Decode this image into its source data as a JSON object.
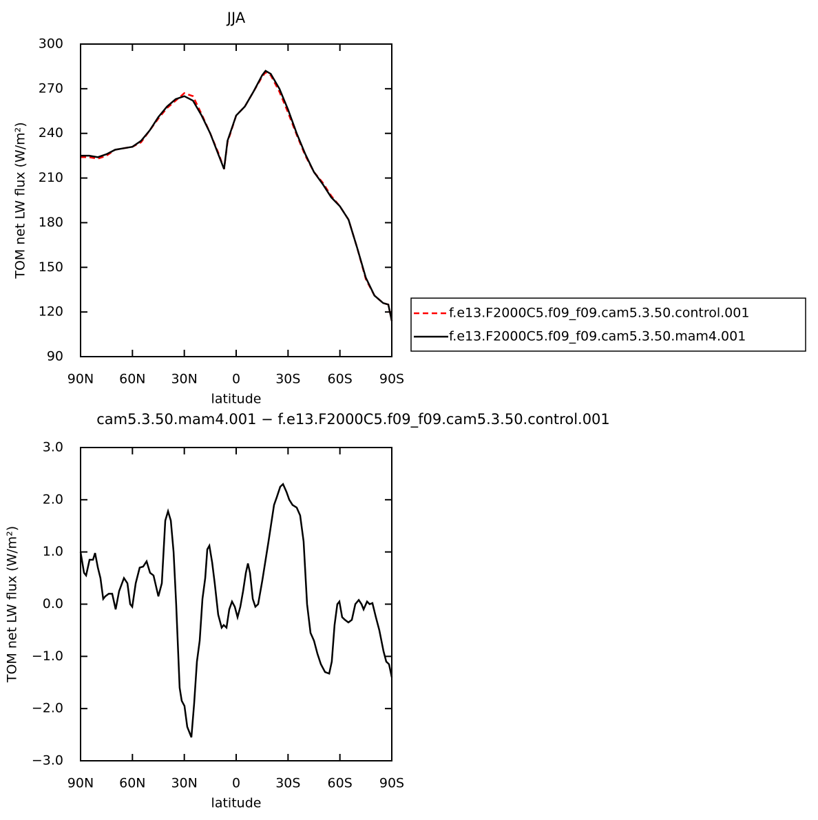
{
  "chart_data": [
    {
      "type": "line",
      "title": "JJA",
      "xlabel": "latitude",
      "ylabel": "TOM net LW flux (W/m²)",
      "x": [
        90,
        85,
        80,
        75,
        70,
        65,
        60,
        55,
        50,
        45,
        40,
        35,
        30,
        25,
        20,
        15,
        10,
        7,
        5,
        0,
        -5,
        -10,
        -15,
        -17,
        -20,
        -25,
        -30,
        -35,
        -40,
        -45,
        -50,
        -55,
        -60,
        -65,
        -70,
        -75,
        -80,
        -85,
        -88,
        -90
      ],
      "series": [
        {
          "name": "f.e13.F2000C5.f09_f09.cam5.3.50.control.001",
          "color": "#ff0000",
          "linestyle": "dashed",
          "values": [
            224,
            224,
            223,
            225,
            229,
            230,
            231,
            234,
            242,
            250,
            257,
            262,
            267,
            265,
            253,
            240,
            226,
            216,
            234,
            252,
            258,
            268,
            278,
            281,
            279,
            268,
            254,
            239,
            225,
            214,
            207,
            198,
            191,
            182,
            163,
            142,
            131,
            126,
            125,
            114
          ]
        },
        {
          "name": "f.e13.F2000C5.f09_f09.cam5.3.50.mam4.001",
          "color": "#000000",
          "linestyle": "solid",
          "values": [
            225,
            225,
            224,
            226,
            229,
            230,
            231,
            235,
            242,
            251,
            258,
            263,
            265,
            262,
            252,
            240,
            225,
            216,
            235,
            252,
            258,
            268,
            279,
            282,
            280,
            270,
            256,
            240,
            226,
            214,
            206,
            197,
            191,
            182,
            163,
            143,
            131,
            126,
            125,
            114
          ]
        }
      ],
      "xlim": [
        90,
        -90
      ],
      "xticks": [
        {
          "value": 90,
          "label": "90N"
        },
        {
          "value": 60,
          "label": "60N"
        },
        {
          "value": 30,
          "label": "30N"
        },
        0,
        {
          "value": -30,
          "label": "30S"
        },
        {
          "value": -60,
          "label": "60S"
        },
        {
          "value": -90,
          "label": "90S"
        }
      ],
      "ylim": [
        90,
        300
      ],
      "yticks": [
        90,
        120,
        150,
        180,
        210,
        240,
        270,
        300
      ],
      "legend": "outside-right"
    },
    {
      "type": "line",
      "title": "cam5.3.50.mam4.001 − f.e13.F2000C5.f09_f09.cam5.3.50.control.001",
      "xlabel": "latitude",
      "ylabel": "TOM net LW flux (W/m²)",
      "x": [
        90,
        88.0,
        86.8,
        84.8,
        82.8,
        81.6,
        80.0,
        78.5,
        76.9,
        75.7,
        73.7,
        71.7,
        69.7,
        67.7,
        64.9,
        62.9,
        61.3,
        60.1,
        58.1,
        55.8,
        53.8,
        51.8,
        49.8,
        47.8,
        45.0,
        43.0,
        41.0,
        39.4,
        37.8,
        36.2,
        34.7,
        32.7,
        31.5,
        29.9,
        28.3,
        25.9,
        24.3,
        22.7,
        21.1,
        19.5,
        17.9,
        16.7,
        15.5,
        13.9,
        12.4,
        10.4,
        8.4,
        7.2,
        5.6,
        4.0,
        2.4,
        0.8,
        -0.8,
        -2.4,
        -4.0,
        -5.6,
        -6.8,
        -8.0,
        -9.6,
        -11.1,
        -12.7,
        -15.1,
        -18.7,
        -21.9,
        -23.5,
        -25.5,
        -27.1,
        -29.1,
        -30.7,
        -32.6,
        -35.0,
        -37.0,
        -39.0,
        -41.0,
        -43.0,
        -45.0,
        -47.0,
        -49.0,
        -51.4,
        -53.8,
        -55.3,
        -56.9,
        -58.5,
        -59.7,
        -61.3,
        -62.9,
        -64.9,
        -66.9,
        -68.9,
        -70.9,
        -72.5,
        -73.7,
        -75.7,
        -77.2,
        -78.8,
        -80.8,
        -82.8,
        -85.2,
        -86.8,
        -88.4,
        -90
      ],
      "series": [
        {
          "name": null,
          "color": "#000000",
          "linestyle": "solid",
          "values": [
            1.0,
            0.6,
            0.55,
            0.85,
            0.85,
            0.98,
            0.7,
            0.5,
            0.1,
            0.15,
            0.2,
            0.2,
            -0.1,
            0.25,
            0.5,
            0.4,
            0.0,
            -0.05,
            0.4,
            0.7,
            0.72,
            0.82,
            0.6,
            0.55,
            0.15,
            0.4,
            1.6,
            1.78,
            1.6,
            1.0,
            0.0,
            -1.6,
            -1.85,
            -1.95,
            -2.35,
            -2.55,
            -1.9,
            -1.1,
            -0.7,
            0.1,
            0.5,
            1.05,
            1.12,
            0.8,
            0.4,
            -0.2,
            -0.45,
            -0.4,
            -0.45,
            -0.1,
            0.05,
            -0.05,
            -0.25,
            -0.05,
            0.25,
            0.6,
            0.78,
            0.6,
            0.1,
            -0.05,
            0.0,
            0.45,
            1.2,
            1.9,
            2.05,
            2.25,
            2.3,
            2.15,
            2.0,
            1.9,
            1.85,
            1.7,
            1.2,
            0.0,
            -0.55,
            -0.7,
            -0.95,
            -1.15,
            -1.3,
            -1.33,
            -1.1,
            -0.4,
            0.0,
            0.05,
            -0.25,
            -0.3,
            -0.35,
            -0.3,
            0.0,
            0.08,
            0.0,
            -0.1,
            0.05,
            0.0,
            0.02,
            -0.25,
            -0.5,
            -0.9,
            -1.1,
            -1.15,
            -1.4
          ]
        }
      ],
      "xlim": [
        90,
        -90
      ],
      "xticks": [
        {
          "value": 90,
          "label": "90N"
        },
        {
          "value": 60,
          "label": "60N"
        },
        {
          "value": 30,
          "label": "30N"
        },
        0,
        {
          "value": -30,
          "label": "30S"
        },
        {
          "value": -60,
          "label": "60S"
        },
        {
          "value": -90,
          "label": "90S"
        }
      ],
      "ylim": [
        -3,
        3
      ],
      "yticks": [
        {
          "value": -3,
          "label": "−3.0"
        },
        {
          "value": -2,
          "label": "−2.0"
        },
        {
          "value": -1,
          "label": "−1.0"
        },
        {
          "value": 0,
          "label": "0.0"
        },
        {
          "value": 1,
          "label": "1.0"
        },
        {
          "value": 2,
          "label": "2.0"
        },
        {
          "value": 3,
          "label": "3.0"
        }
      ]
    }
  ]
}
